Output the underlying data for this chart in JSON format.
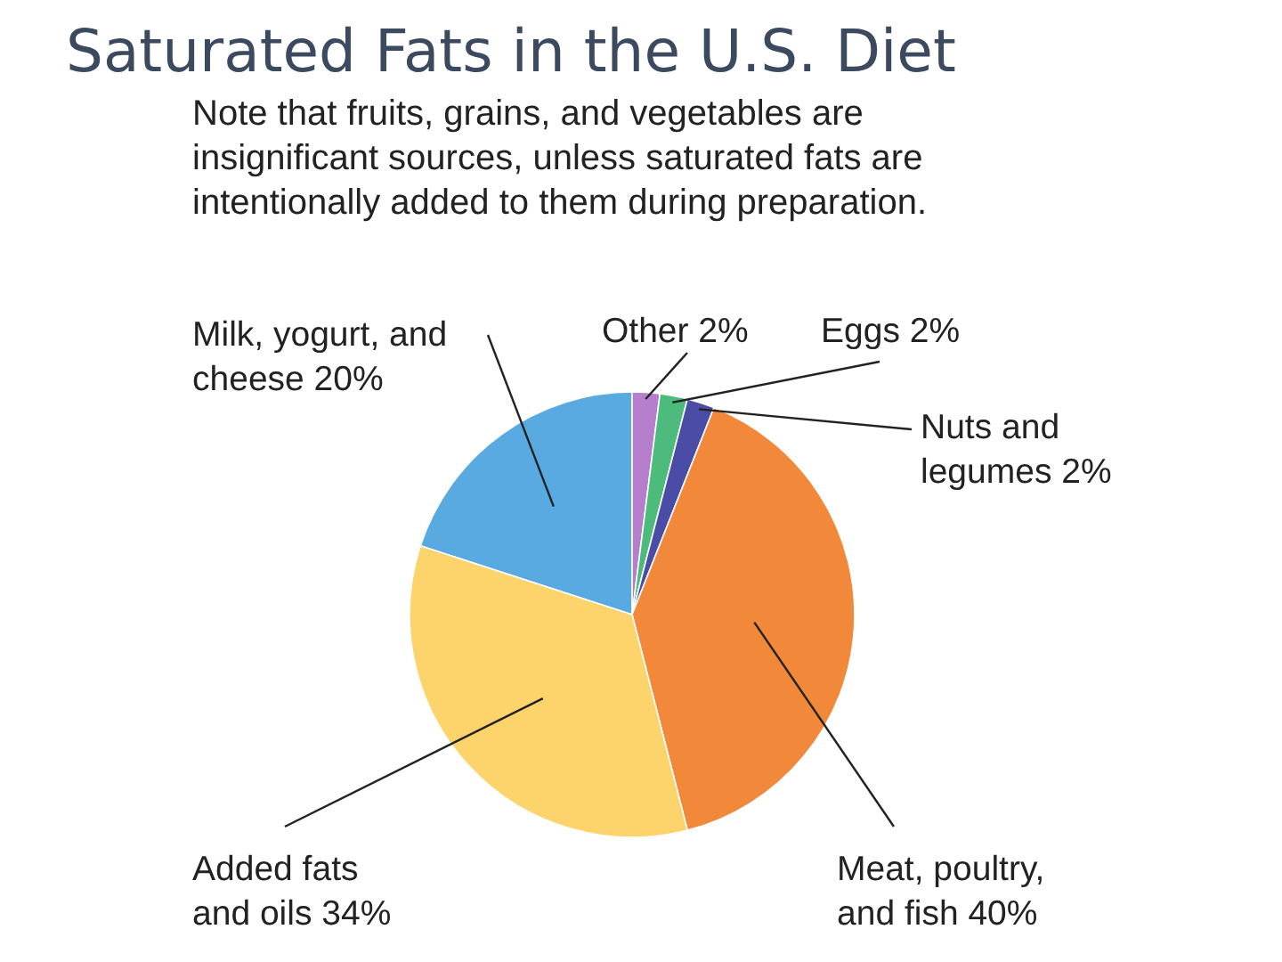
{
  "chart_data": {
    "type": "pie",
    "title": "Saturated Fats in the U.S. Diet",
    "annotations": [
      "Note that fruits, grains, and vegetables are insignificant sources, unless saturated fats are intentionally added to them during preparation."
    ],
    "categories": [
      "Milk, yogurt, and cheese",
      "Other",
      "Eggs",
      "Nuts and legumes",
      "Meat, poultry, and fish",
      "Added fats and oils"
    ],
    "values": [
      20,
      2,
      2,
      2,
      40,
      34
    ],
    "value_labels": [
      "20%",
      "2%",
      "2%",
      "2%",
      "40%",
      "34%"
    ],
    "colors": [
      "#5aaae2",
      "#b67fce",
      "#4dbb7c",
      "#4b4ca6",
      "#f2883a",
      "#fdd36b"
    ]
  }
}
